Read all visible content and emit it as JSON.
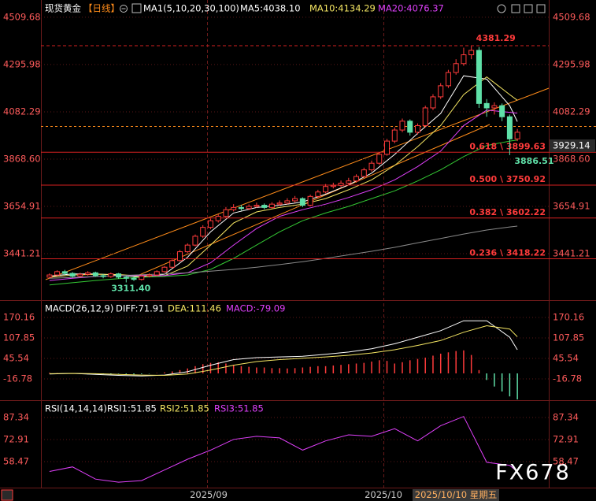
{
  "header": {
    "instrument": "现货黄金",
    "period": "【日线】",
    "time_labels": [
      "2025/09",
      "2025/10"
    ],
    "cursor_label": "2025/10/10 星期五",
    "watermark": "FX678"
  },
  "chart_data": [
    {
      "type": "candlestick",
      "title": "MA1(5,10,20,30,100)",
      "up_color": "#ff3b3b",
      "down_color": "#5fe0a8",
      "grid": true,
      "ylim": [
        3242,
        4552
      ],
      "yticks": [
        4509.68,
        4295.98,
        4082.29,
        {
          "value": 3868.6,
          "label": "3868.60"
        },
        3654.91,
        3441.21
      ],
      "ohlc": {
        "open": [
          3335,
          3345,
          3360,
          3352,
          3340,
          3348,
          3355,
          3342,
          3338,
          3350,
          3335,
          3330,
          3325,
          3340,
          3345,
          3360,
          3380,
          3410,
          3450,
          3480,
          3520,
          3560,
          3590,
          3610,
          3640,
          3650,
          3645,
          3655,
          3660,
          3650,
          3665,
          3670,
          3680,
          3690,
          3660,
          3700,
          3720,
          3745,
          3750,
          3760,
          3770,
          3790,
          3820,
          3850,
          3890,
          3950,
          4000,
          4040,
          3990,
          4020,
          4100,
          4150,
          4200,
          4260,
          4300,
          4340,
          4360,
          4120,
          4100,
          4110,
          4060,
          3960
        ],
        "high": [
          3352,
          3366,
          3368,
          3358,
          3355,
          3362,
          3360,
          3350,
          3356,
          3354,
          3342,
          3338,
          3346,
          3352,
          3366,
          3386,
          3416,
          3458,
          3488,
          3528,
          3570,
          3600,
          3620,
          3652,
          3665,
          3662,
          3664,
          3672,
          3668,
          3674,
          3682,
          3692,
          3702,
          3696,
          3708,
          3730,
          3756,
          3762,
          3772,
          3784,
          3800,
          3830,
          3862,
          3900,
          3960,
          4012,
          4052,
          4048,
          4030,
          4110,
          4162,
          4212,
          4272,
          4320,
          4372,
          4381.29,
          4375,
          4140,
          4125,
          4120,
          4070,
          4005
        ],
        "low": [
          3330,
          3340,
          3345,
          3332,
          3334,
          3342,
          3336,
          3330,
          3332,
          3328,
          3311.4,
          3318,
          3320,
          3334,
          3340,
          3355,
          3375,
          3405,
          3444,
          3474,
          3512,
          3552,
          3582,
          3604,
          3632,
          3636,
          3638,
          3648,
          3642,
          3644,
          3658,
          3664,
          3672,
          3652,
          3655,
          3694,
          3714,
          3736,
          3742,
          3752,
          3762,
          3784,
          3812,
          3842,
          3884,
          3940,
          3990,
          3975,
          3980,
          4012,
          4090,
          4140,
          4190,
          4250,
          4290,
          4320,
          4100,
          4060,
          4070,
          4040,
          3886.51,
          3950
        ],
        "close": [
          3345,
          3360,
          3352,
          3340,
          3348,
          3355,
          3342,
          3338,
          3350,
          3335,
          3330,
          3325,
          3340,
          3345,
          3360,
          3380,
          3410,
          3450,
          3480,
          3520,
          3560,
          3590,
          3610,
          3640,
          3650,
          3645,
          3655,
          3660,
          3650,
          3665,
          3670,
          3680,
          3690,
          3660,
          3700,
          3720,
          3745,
          3750,
          3760,
          3770,
          3790,
          3820,
          3850,
          3890,
          3950,
          4000,
          4040,
          3990,
          4020,
          4100,
          4150,
          4200,
          4260,
          4300,
          4340,
          4360,
          4120,
          4100,
          4110,
          4060,
          3960,
          3990
        ]
      },
      "ma_x": [
        0,
        3,
        6,
        9,
        12,
        15,
        18,
        21,
        24,
        27,
        30,
        33,
        36,
        39,
        42,
        45,
        48,
        51,
        54,
        57,
        60,
        61
      ],
      "series": [
        {
          "name": "MA5:4038.10",
          "color": "#ffffff",
          "values": [
            3340,
            3350,
            3350,
            3344,
            3335,
            3348,
            3425,
            3540,
            3625,
            3650,
            3660,
            3675,
            3710,
            3752,
            3805,
            3890,
            3985,
            4075,
            4245,
            4230,
            4110,
            4038.1
          ]
        },
        {
          "name": "MA10:4134.29",
          "color": "#f5e663",
          "values": [
            3335,
            3345,
            3348,
            3347,
            3340,
            3342,
            3385,
            3480,
            3580,
            3630,
            3650,
            3665,
            3690,
            3730,
            3775,
            3840,
            3925,
            4020,
            4160,
            4240,
            4160,
            4134.29
          ]
        },
        {
          "name": "MA20:4076.37",
          "color": "#e040fb",
          "values": [
            3320,
            3330,
            3338,
            3342,
            3343,
            3342,
            3355,
            3400,
            3480,
            3555,
            3610,
            3640,
            3665,
            3695,
            3730,
            3775,
            3835,
            3905,
            4020,
            4090,
            4080,
            4076.37
          ]
        },
        {
          "color": "#34c934",
          "values": [
            3300,
            3310,
            3320,
            3328,
            3335,
            3338,
            3345,
            3370,
            3420,
            3480,
            3540,
            3590,
            3625,
            3655,
            3690,
            3725,
            3770,
            3820,
            3880,
            3930,
            3950,
            3955
          ]
        },
        {
          "color": "#8a8a8a",
          "values": [
            3330,
            3334,
            3338,
            3342,
            3346,
            3350,
            3355,
            3362,
            3370,
            3380,
            3392,
            3405,
            3420,
            3436,
            3452,
            3470,
            3490,
            3510,
            3530,
            3548,
            3562,
            3566
          ]
        }
      ],
      "annotations": [
        {
          "value": 4381.29,
          "label": "4381.29"
        },
        {
          "value": 3311.4,
          "label": "3311.40"
        },
        {
          "value": 3886.51,
          "label": "3886.51"
        }
      ],
      "fib_levels": [
        {
          "value": 3899.63,
          "label": "0.618 \\ 3899.63"
        },
        {
          "value": 3750.92,
          "label": "0.500 \\ 3750.92"
        },
        {
          "value": 3602.22,
          "label": "0.382 \\ 3602.22"
        },
        {
          "value": 3418.22,
          "label": "0.236 \\ 3418.22"
        }
      ],
      "last_price": 3929.14
    },
    {
      "type": "macd",
      "title": "MACD(26,12,9)",
      "up_color": "#ff3b3b",
      "down_color": "#5fe0a8",
      "grid": true,
      "ylim": [
        -74.3,
        206.1
      ],
      "yticks": [
        170.16,
        107.85,
        45.54,
        -16.78
      ],
      "ma_x": [
        0,
        3,
        6,
        9,
        12,
        15,
        18,
        21,
        24,
        27,
        30,
        33,
        36,
        39,
        42,
        45,
        48,
        51,
        54,
        57,
        60,
        61
      ],
      "series": [
        {
          "name": "DIFF:71.91",
          "color": "#ffffff",
          "values": [
            -2,
            0,
            -3,
            -6,
            -8,
            -5,
            5,
            25,
            42,
            48,
            50,
            52,
            58,
            65,
            75,
            90,
            110,
            130,
            160,
            160,
            110,
            71.91
          ]
        },
        {
          "name": "DEA:111.46",
          "color": "#f5e663",
          "values": [
            -1,
            0,
            -1,
            -3,
            -5,
            -6,
            -2,
            10,
            25,
            36,
            42,
            46,
            50,
            55,
            62,
            72,
            85,
            100,
            125,
            145,
            135,
            111.46
          ]
        }
      ],
      "histogram": {
        "name": "MACD:-79.09",
        "color": "#e040fb",
        "values": [
          2,
          1,
          0,
          -1,
          -2,
          -3,
          -3,
          -2,
          -2,
          -1,
          -2,
          -3,
          -2,
          -1,
          1,
          3,
          6,
          10,
          15,
          22,
          28,
          32,
          34,
          30,
          26,
          22,
          20,
          18,
          18,
          16,
          16,
          15,
          16,
          18,
          20,
          22,
          22,
          24,
          26,
          28,
          30,
          32,
          36,
          40,
          38,
          30,
          34,
          40,
          44,
          48,
          54,
          60,
          64,
          68,
          70,
          56,
          10,
          -20,
          -40,
          -55,
          -70,
          -79.09
        ]
      }
    },
    {
      "type": "line",
      "title": "RSI(14,14,14)",
      "grid": true,
      "ylim": [
        40.9,
        95.6
      ],
      "yticks": [
        87.34,
        72.91,
        58.47
      ],
      "legend": [
        {
          "label": "RSI1:51.85",
          "color": "#ffffff"
        },
        {
          "label": "RSI2:51.85",
          "color": "#f5e663"
        },
        {
          "label": "RSI3:51.85",
          "color": "#e040fb"
        }
      ],
      "ma_x": [
        0,
        3,
        6,
        9,
        12,
        15,
        18,
        21,
        24,
        27,
        30,
        33,
        36,
        39,
        42,
        45,
        48,
        51,
        54,
        57,
        60,
        61
      ],
      "series": [
        {
          "color": "#e040fb",
          "values": [
            52,
            55,
            47,
            45,
            46,
            53,
            60,
            66,
            73,
            75,
            74,
            66,
            72,
            76,
            75,
            80,
            72,
            82,
            88,
            58,
            56,
            51.85
          ]
        }
      ]
    }
  ]
}
